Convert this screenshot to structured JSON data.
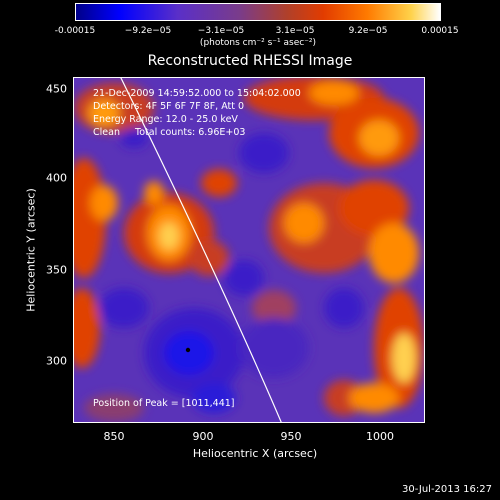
{
  "colorbar": {
    "ticks": [
      "-0.00015",
      "−9.2e−05",
      "−3.1e−05",
      "3.1e−05",
      "9.2e−05",
      "0.00015"
    ],
    "units": "(photons cm⁻² s⁻¹ asec⁻²)"
  },
  "title": "Reconstructed RHESSI Image",
  "annotations": {
    "time_range": "21-Dec-2009 14:59:52.000 to 15:04:02.000",
    "detectors": "Detectors: 4F 5F 6F 7F 8F, Att 0",
    "energy": "Energy Range: 12.0 - 25.0 keV",
    "clean": "Clean     Total counts: 6.96E+03",
    "peak": "Position of Peak = [1011,441]"
  },
  "axes": {
    "xlabel": "Heliocentric X (arcsec)",
    "ylabel": "Heliocentric Y (arcsec)",
    "xticks": [
      "850",
      "900",
      "950",
      "1000"
    ],
    "yticks": [
      "450",
      "400",
      "350",
      "300"
    ]
  },
  "stamp": "30-Jul-2013 16:27"
}
